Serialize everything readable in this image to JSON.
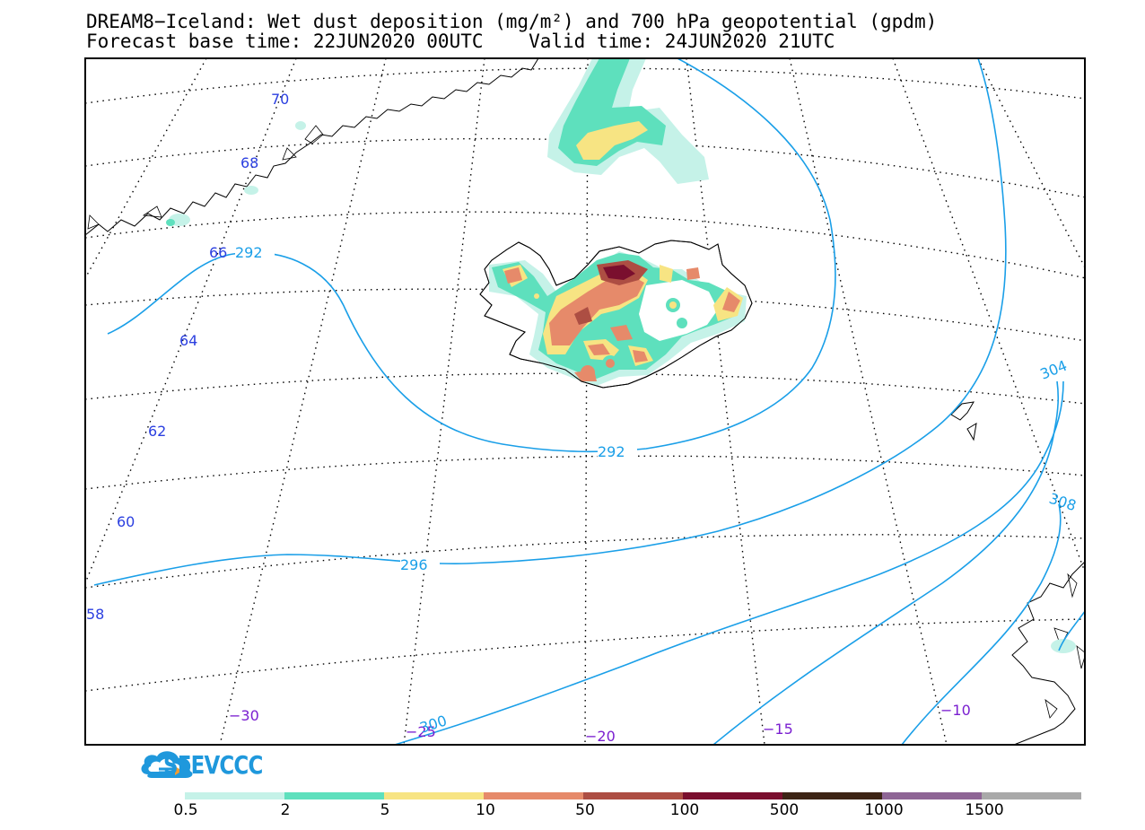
{
  "title": {
    "line1": "DREAM8−Iceland: Wet dust deposition (mg/m²) and 700 hPa geopotential (gpdm)",
    "line2": "Forecast base time: 22JUN2020 00UTC    Valid time: 24JUN2020 21UTC"
  },
  "map": {
    "latitude_labels": [
      "70",
      "68",
      "66",
      "64",
      "62",
      "60",
      "58"
    ],
    "longitude_labels": [
      "−30",
      "−25",
      "−20",
      "−15",
      "−10"
    ],
    "contour_labels": [
      "292",
      "292",
      "296",
      "304",
      "308",
      "300"
    ],
    "contour_color": "#1a9fe8",
    "graticule_label_color": "#2b3fe0",
    "lon_label_color": "#7a1fd0",
    "regions": [
      "Iceland",
      "Greenland",
      "Faroe Islands",
      "Norway"
    ]
  },
  "logo": {
    "text": "SEEVCCC",
    "icon": "cloud-logo-icon"
  },
  "colorbar": {
    "ticks": [
      "0.5",
      "2",
      "5",
      "10",
      "50",
      "100",
      "500",
      "1000",
      "1500"
    ],
    "colors": [
      "#c5f2e8",
      "#5ee0bd",
      "#f7e483",
      "#e68a6a",
      "#ad4e43",
      "#7a0f2e",
      "#3d2415",
      "#8e6595",
      "#a9a9a9"
    ]
  }
}
